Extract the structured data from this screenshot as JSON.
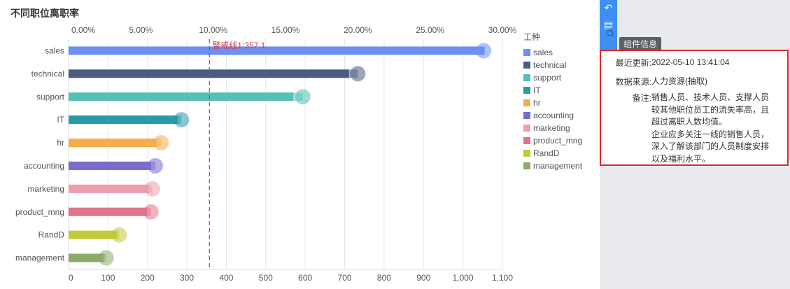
{
  "chart_data": {
    "type": "bar",
    "title": "不同职位离职率",
    "categories": [
      "sales",
      "technical",
      "support",
      "IT",
      "hr",
      "accounting",
      "marketing",
      "product_mng",
      "RandD",
      "management"
    ],
    "values": [
      1055,
      711,
      570,
      277,
      222,
      209,
      203,
      199,
      122,
      89
    ],
    "rates": [
      28.7,
      20.0,
      16.2,
      7.8,
      6.4,
      6.0,
      5.8,
      5.7,
      3.5,
      2.6
    ],
    "colors": [
      "#6d90f0",
      "#4a5d80",
      "#58bfb6",
      "#2a9aa6",
      "#f4ad4c",
      "#7a6ccc",
      "#eb9fae",
      "#e0748a",
      "#c2ca3a",
      "#8cab6a"
    ],
    "x_ticks": [
      0,
      100,
      200,
      300,
      400,
      500,
      600,
      700,
      800,
      900,
      1000,
      1100
    ],
    "x_tick_labels": [
      "0",
      "100",
      "200",
      "300",
      "400",
      "500",
      "600",
      "700",
      "800",
      "900",
      "1,000",
      "1,100"
    ],
    "x2_ticks": [
      "0.00%",
      "5.00%",
      "10.00%",
      "15.00%",
      "20.00%",
      "25.00%",
      "30.00%"
    ],
    "xlim": [
      0,
      1100
    ],
    "x2lim": [
      0,
      30
    ],
    "warning_line": {
      "value": 357.1,
      "label": "警戒线1:357.1"
    },
    "legend_title": "工种"
  },
  "toolbar": {
    "tag": "组件信息"
  },
  "info": {
    "updated_label": "最近更新:",
    "updated_value": "2022-05-10 13:41:04",
    "source_label": "数据来源:",
    "source_value": "人力资源(抽取)",
    "note_label": "备注:",
    "note_value": "销售人员、技术人员、支撑人员较其他职位员工的流失率高，且超过离职人数均值。\n企业应多关注一线的销售人员，深入了解该部门的人员制度安排以及福利水平。"
  }
}
